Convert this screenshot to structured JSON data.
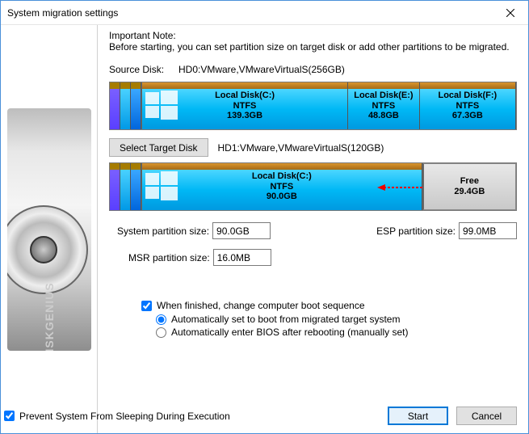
{
  "window": {
    "title": "System migration settings"
  },
  "note": {
    "heading": "Important Note:",
    "body": "Before starting, you can set partition size on target disk or add other partitions to be migrated."
  },
  "source": {
    "label": "Source Disk:",
    "value": "HD0:VMware,VMwareVirtualS(256GB)",
    "partitions": [
      {
        "name": "Local Disk(C:)",
        "fs": "NTFS",
        "size": "139.3GB",
        "flex": 2.9,
        "win": true
      },
      {
        "name": "Local Disk(E:)",
        "fs": "NTFS",
        "size": "48.8GB",
        "flex": 1.0,
        "win": false
      },
      {
        "name": "Local Disk(F:)",
        "fs": "NTFS",
        "size": "67.3GB",
        "flex": 1.35,
        "win": false
      }
    ]
  },
  "target": {
    "select_label": "Select Target Disk",
    "value": "HD1:VMware,VMwareVirtualS(120GB)",
    "partitions": [
      {
        "name": "Local Disk(C:)",
        "fs": "NTFS",
        "size": "90.0GB",
        "flex": 3.05,
        "win": true
      }
    ],
    "free": {
      "label": "Free",
      "size": "29.4GB",
      "flex": 1.0
    }
  },
  "fields": {
    "sys_label": "System partition size:",
    "sys_value": "90.0GB",
    "esp_label": "ESP partition size:",
    "esp_value": "99.0MB",
    "msr_label": "MSR partition size:",
    "msr_value": "16.0MB"
  },
  "options": {
    "boot_seq": "When finished, change computer boot sequence",
    "auto_boot": "Automatically set to boot from migrated target system",
    "auto_bios": "Automatically enter BIOS after rebooting (manually set)",
    "prevent_sleep": "Prevent System From Sleeping During Execution"
  },
  "buttons": {
    "start": "Start",
    "cancel": "Cancel"
  },
  "brand": "DISKGENIUS",
  "colors": {
    "part_top": "#c8821f",
    "part_grad_a": "#4bd6ff",
    "part_grad_b": "#0099e0",
    "free_a": "#e8e8e8",
    "free_b": "#c9c9c9",
    "accent": "#0078d7"
  }
}
